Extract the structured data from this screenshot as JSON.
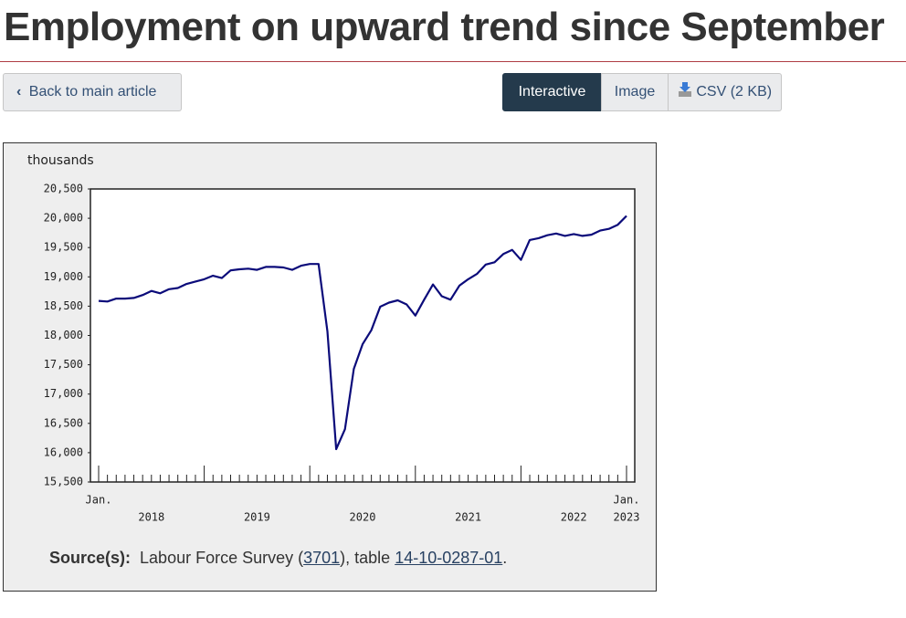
{
  "header": {
    "title": "Employment on upward trend since September"
  },
  "buttons": {
    "back": "Back to main article",
    "interactive": "Interactive",
    "image": "Image",
    "csv": "CSV (2 KB)"
  },
  "chart_data": {
    "type": "line",
    "y_unit_label": "thousands",
    "categories": [
      "Jan.",
      null,
      null,
      null,
      null,
      null,
      null,
      null,
      null,
      null,
      null,
      null,
      null,
      null,
      null,
      null,
      null,
      null,
      null,
      null,
      null,
      null,
      null,
      null,
      null,
      null,
      null,
      null,
      null,
      null,
      null,
      null,
      null,
      null,
      null,
      null,
      null,
      null,
      null,
      null,
      null,
      null,
      null,
      null,
      null,
      null,
      null,
      null,
      null,
      null,
      null,
      null,
      null,
      null,
      null,
      null,
      null,
      null,
      null,
      null,
      "Jan."
    ],
    "year_labels": [
      "2018",
      "2019",
      "2020",
      "2021",
      "2022",
      "2023"
    ],
    "series": [
      {
        "name": "Employment",
        "color": "#0b0b7a",
        "values": [
          18590,
          18580,
          18630,
          18630,
          18640,
          18690,
          18760,
          18720,
          18790,
          18810,
          18880,
          18920,
          18960,
          19020,
          18980,
          19110,
          19130,
          19140,
          19120,
          19170,
          19170,
          19160,
          19120,
          19190,
          19220,
          19220,
          18070,
          16060,
          16400,
          17430,
          17850,
          18090,
          18490,
          18560,
          18600,
          18530,
          18340,
          18610,
          18870,
          18670,
          18610,
          18850,
          18960,
          19050,
          19210,
          19250,
          19390,
          19460,
          19290,
          19630,
          19660,
          19710,
          19740,
          19700,
          19730,
          19700,
          19720,
          19790,
          19820,
          19890,
          20040
        ]
      }
    ],
    "ylim": [
      15500,
      20500
    ],
    "yticks": [
      {
        "value": 15500,
        "label": "15,500"
      },
      {
        "value": 16000,
        "label": "16,000"
      },
      {
        "value": 16500,
        "label": "16,500"
      },
      {
        "value": 17000,
        "label": "17,000"
      },
      {
        "value": 17500,
        "label": "17,500"
      },
      {
        "value": 18000,
        "label": "18,000"
      },
      {
        "value": 18500,
        "label": "18,500"
      },
      {
        "value": 19000,
        "label": "19,000"
      },
      {
        "value": 19500,
        "label": "19,500"
      },
      {
        "value": 20000,
        "label": "20,000"
      },
      {
        "value": 20500,
        "label": "20,500"
      }
    ],
    "grid": false
  },
  "source": {
    "label": "Source(s):",
    "text1": "Labour Force Survey (",
    "link1": "3701",
    "text2": "), table ",
    "link2": "14-10-0287-01",
    "text3": "."
  }
}
